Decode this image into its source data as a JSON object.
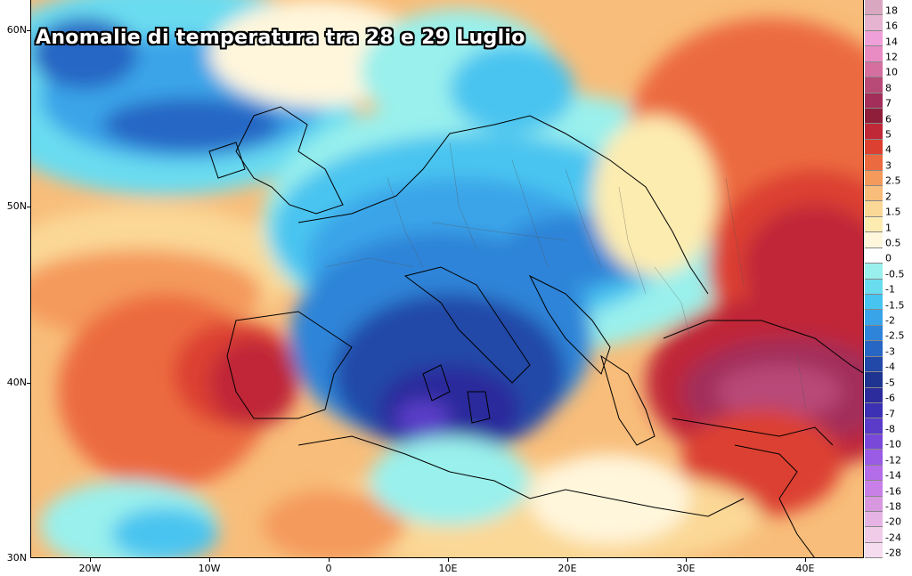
{
  "title": "Anomalie di temperatura tra 28 e 29 Luglio",
  "lat_labels": [
    "60N",
    "50N",
    "40N",
    "30N"
  ],
  "lon_labels": [
    "20W",
    "10W",
    "0",
    "10E",
    "20E",
    "30E",
    "40E"
  ],
  "legend": {
    "values": [
      "18",
      "16",
      "14",
      "12",
      "10",
      "8",
      "7",
      "6",
      "5",
      "4",
      "3",
      "2.5",
      "2",
      "1.5",
      "1",
      "0.5",
      "0",
      "-0.5",
      "-1",
      "-1.5",
      "-2",
      "-2.5",
      "-3",
      "-4",
      "-5",
      "-6",
      "-7",
      "-8",
      "-10",
      "-12",
      "-14",
      "-16",
      "-18",
      "-20",
      "-24",
      "-28"
    ],
    "colors": [
      "#d9a8c0",
      "#e6b3d1",
      "#f0a0d8",
      "#e98cc4",
      "#d46fa0",
      "#b84a78",
      "#a32e5a",
      "#8e1e3a",
      "#c02838",
      "#dc4030",
      "#ec6a40",
      "#f49a5c",
      "#f8bd7a",
      "#fbd896",
      "#fdecb0",
      "#fff6dc",
      "#ffffff",
      "#9af0ec",
      "#6adcf0",
      "#48c4f0",
      "#3aa4e8",
      "#2e84d8",
      "#2866c4",
      "#2248a8",
      "#1e3490",
      "#2c2c9c",
      "#3c30b4",
      "#5a3cc8",
      "#7a48d8",
      "#9a5ce4",
      "#b46ce8",
      "#c880e8",
      "#d898e0",
      "#e6b4e4",
      "#f0cce8",
      "#f6dcef"
    ]
  },
  "map_colors": {
    "hot_dark": "#a32e5a",
    "hot": "#dc4030",
    "warm": "#f49a5c",
    "mild": "#fbd896",
    "neutral": "#fff6dc",
    "cool": "#9af0ec",
    "cold": "#48c4f0",
    "colder": "#2866c4",
    "coldest": "#1e3490",
    "extreme": "#5a3cc8"
  }
}
